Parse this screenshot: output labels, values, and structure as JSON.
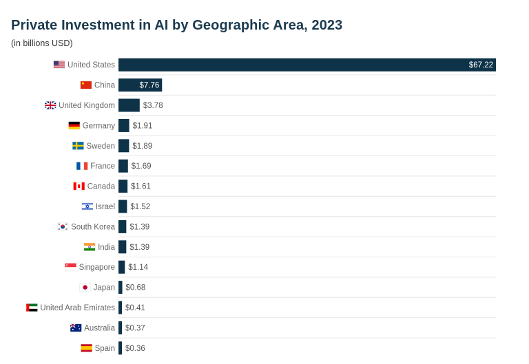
{
  "chart_data": {
    "type": "bar",
    "orientation": "horizontal",
    "title": "Private Investment in AI by Geographic Area, 2023",
    "subtitle": "(in billions USD)",
    "categories": [
      "United States",
      "China",
      "United Kingdom",
      "Germany",
      "Sweden",
      "France",
      "Canada",
      "Israel",
      "South Korea",
      "India",
      "Singapore",
      "Japan",
      "United Arab Emirates",
      "Australia",
      "Spain"
    ],
    "values": [
      67.22,
      7.76,
      3.78,
      1.91,
      1.89,
      1.69,
      1.61,
      1.52,
      1.39,
      1.39,
      1.14,
      0.68,
      0.41,
      0.37,
      0.36
    ],
    "value_labels": [
      "$67.22",
      "$7.76",
      "$3.78",
      "$1.91",
      "$1.89",
      "$1.69",
      "$1.61",
      "$1.52",
      "$1.39",
      "$1.39",
      "$1.14",
      "$0.68",
      "$0.41",
      "$0.37",
      "$0.36"
    ],
    "flag_icons": [
      "us-flag-icon",
      "cn-flag-icon",
      "gb-flag-icon",
      "de-flag-icon",
      "se-flag-icon",
      "fr-flag-icon",
      "ca-flag-icon",
      "il-flag-icon",
      "kr-flag-icon",
      "in-flag-icon",
      "sg-flag-icon",
      "jp-flag-icon",
      "ae-flag-icon",
      "au-flag-icon",
      "es-flag-icon"
    ],
    "xlim": [
      0,
      67.22
    ],
    "bar_color": "#0e3247",
    "label_color": "#666666",
    "grid": "horizontal separators"
  }
}
